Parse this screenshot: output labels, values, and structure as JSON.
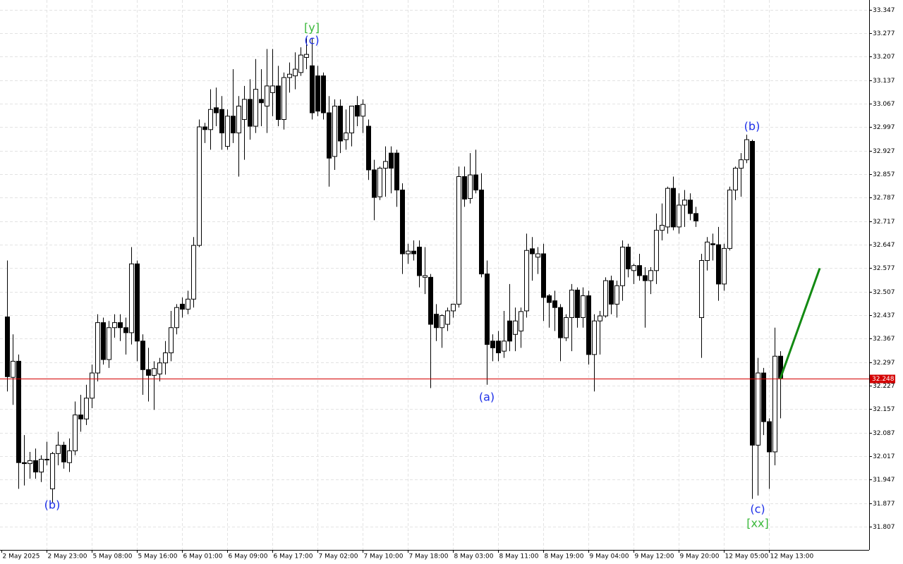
{
  "chart_data": {
    "type": "candlestick",
    "categories": [
      "2 May 2025",
      null,
      null,
      null,
      null,
      null,
      null,
      null,
      "2 May 23:00",
      null,
      null,
      null,
      null,
      null,
      null,
      null,
      "5 May 08:00",
      null,
      null,
      null,
      null,
      null,
      null,
      null,
      "5 May 16:00",
      null,
      null,
      null,
      null,
      null,
      null,
      null,
      "6 May 01:00",
      null,
      null,
      null,
      null,
      null,
      null,
      null,
      "6 May 09:00",
      null,
      null,
      null,
      null,
      null,
      null,
      null,
      "6 May 17:00",
      null,
      null,
      null,
      null,
      null,
      null,
      null,
      "7 May 02:00",
      null,
      null,
      null,
      null,
      null,
      null,
      null,
      "7 May 10:00",
      null,
      null,
      null,
      null,
      null,
      null,
      null,
      "7 May 18:00",
      null,
      null,
      null,
      null,
      null,
      null,
      null,
      "8 May 03:00",
      null,
      null,
      null,
      null,
      null,
      null,
      null,
      "8 May 11:00",
      null,
      null,
      null,
      null,
      null,
      null,
      null,
      "8 May 19:00",
      null,
      null,
      null,
      null,
      null,
      null,
      null,
      "9 May 04:00",
      null,
      null,
      null,
      null,
      null,
      null,
      null,
      "9 May 12:00",
      null,
      null,
      null,
      null,
      null,
      null,
      null,
      "9 May 20:00",
      null,
      null,
      null,
      null,
      null,
      null,
      null,
      "12 May 05:00",
      null,
      null,
      null,
      null,
      null,
      null,
      null,
      "12 May 13:00",
      null
    ],
    "open": [
      32.432,
      32.252,
      32.3,
      31.998,
      31.995,
      32.004,
      31.97,
      32.006,
      31.92,
      32.025,
      32.05,
      31.998,
      32.033,
      32.14,
      32.128,
      32.19,
      32.265,
      32.415,
      32.305,
      32.4,
      32.415,
      32.4,
      32.385,
      32.59,
      32.36,
      32.275,
      32.258,
      32.262,
      32.295,
      32.325,
      32.4,
      32.47,
      32.455,
      32.485,
      32.645,
      32.998,
      32.99,
      33.055,
      33.05,
      32.94,
      33.03,
      32.98,
      33.02,
      33.08,
      33.0,
      33.08,
      33.06,
      33.1,
      33.12,
      33.02,
      33.145,
      33.15,
      33.16,
      33.205,
      33.18,
      33.15,
      33.15,
      33.04,
      32.91,
      33.06,
      32.96,
      32.98,
      33.062,
      33.03,
      33.0,
      32.87,
      32.79,
      32.875,
      32.92,
      32.92,
      32.81,
      32.62,
      32.628,
      32.64,
      32.55,
      32.55,
      32.44,
      32.4,
      32.41,
      32.45,
      32.47,
      32.85,
      32.785,
      32.855,
      32.81,
      32.56,
      32.36,
      32.36,
      32.33,
      32.42,
      32.38,
      32.39,
      32.45,
      32.635,
      32.61,
      32.62,
      32.495,
      32.48,
      32.46,
      32.37,
      32.43,
      32.512,
      32.43,
      32.495,
      32.32,
      32.42,
      32.435,
      32.54,
      32.47,
      32.525,
      32.64,
      32.57,
      32.585,
      32.555,
      32.54,
      32.57,
      32.69,
      32.7,
      32.815,
      32.7,
      32.765,
      32.78,
      32.74,
      32.43,
      32.6,
      32.65,
      32.647,
      32.53,
      32.636,
      32.81,
      32.875,
      32.9,
      32.955,
      32.05,
      32.265,
      32.12,
      32.03,
      32.315
    ],
    "high": [
      32.6,
      32.38,
      32.32,
      32.08,
      32.03,
      32.04,
      32.02,
      32.06,
      32.03,
      32.09,
      32.06,
      32.07,
      32.18,
      32.2,
      32.23,
      32.29,
      32.44,
      32.43,
      32.42,
      32.44,
      32.44,
      32.43,
      32.64,
      32.6,
      32.38,
      32.34,
      32.3,
      32.31,
      32.36,
      32.45,
      32.47,
      32.49,
      32.51,
      32.67,
      33.02,
      33.01,
      33.11,
      33.115,
      33.09,
      33.05,
      33.17,
      33.09,
      33.12,
      33.14,
      33.2,
      33.17,
      33.23,
      33.23,
      33.18,
      33.16,
      33.19,
      33.22,
      33.235,
      33.262,
      33.262,
      33.18,
      33.16,
      33.09,
      33.08,
      33.08,
      33.05,
      33.06,
      33.09,
      33.08,
      33.02,
      32.9,
      32.88,
      32.94,
      32.94,
      32.93,
      32.83,
      32.65,
      32.66,
      32.66,
      32.64,
      32.56,
      32.47,
      32.44,
      32.46,
      32.47,
      32.88,
      32.88,
      32.92,
      32.93,
      32.86,
      32.6,
      32.38,
      32.39,
      32.45,
      32.53,
      32.46,
      32.46,
      32.68,
      32.67,
      32.64,
      32.65,
      32.5,
      32.51,
      32.47,
      32.44,
      32.53,
      32.52,
      32.52,
      32.51,
      32.44,
      32.45,
      32.55,
      32.555,
      32.54,
      32.66,
      32.65,
      32.59,
      32.62,
      32.58,
      32.58,
      32.74,
      32.77,
      32.82,
      32.85,
      32.8,
      32.81,
      32.8,
      32.76,
      32.62,
      32.67,
      32.68,
      32.7,
      32.65,
      32.82,
      32.88,
      32.92,
      32.975,
      32.96,
      32.31,
      32.28,
      32.13,
      32.4,
      32.33
    ],
    "low": [
      32.21,
      32.17,
      31.92,
      31.93,
      31.95,
      31.95,
      31.94,
      31.99,
      31.88,
      31.99,
      31.98,
      31.97,
      32.02,
      32.09,
      32.11,
      32.16,
      32.24,
      32.29,
      32.28,
      32.37,
      32.36,
      32.32,
      32.35,
      32.3,
      32.2,
      32.18,
      32.155,
      32.24,
      32.26,
      32.3,
      32.38,
      32.43,
      32.44,
      32.46,
      32.64,
      32.95,
      32.93,
      33.0,
      32.93,
      32.93,
      32.95,
      32.85,
      32.9,
      32.96,
      32.98,
      33.0,
      32.98,
      33.03,
      33.0,
      32.99,
      33.1,
      33.11,
      33.15,
      33.17,
      33.02,
      33.03,
      33.02,
      32.82,
      32.87,
      32.92,
      32.93,
      32.94,
      33.0,
      32.98,
      32.84,
      32.72,
      32.78,
      32.79,
      32.8,
      32.76,
      32.56,
      32.59,
      32.6,
      32.52,
      32.5,
      32.22,
      32.36,
      32.34,
      32.39,
      32.43,
      32.46,
      32.76,
      32.77,
      32.8,
      32.55,
      32.23,
      32.3,
      32.3,
      32.31,
      32.33,
      32.33,
      32.34,
      32.43,
      32.54,
      32.56,
      32.42,
      32.4,
      32.39,
      32.3,
      32.36,
      32.33,
      32.4,
      32.4,
      32.29,
      32.21,
      32.32,
      32.43,
      32.44,
      32.43,
      32.48,
      32.55,
      32.53,
      32.54,
      32.4,
      32.5,
      32.53,
      32.66,
      32.68,
      32.69,
      32.68,
      32.7,
      32.72,
      32.7,
      32.31,
      32.57,
      32.6,
      32.48,
      32.51,
      32.63,
      32.78,
      32.79,
      32.89,
      31.89,
      31.9,
      32.08,
      31.92,
      31.99,
      32.13
    ],
    "close": [
      32.254,
      32.3,
      31.998,
      31.995,
      32.004,
      31.97,
      32.008,
      32.008,
      32.025,
      32.05,
      32.0,
      32.033,
      32.14,
      32.128,
      32.19,
      32.265,
      32.415,
      32.305,
      32.4,
      32.415,
      32.4,
      32.385,
      32.59,
      32.36,
      32.275,
      32.258,
      32.278,
      32.295,
      32.325,
      32.4,
      32.46,
      32.455,
      32.485,
      32.645,
      32.998,
      32.99,
      33.05,
      33.04,
      32.98,
      33.03,
      32.98,
      33.06,
      33.08,
      33.0,
      33.11,
      33.07,
      33.12,
      33.12,
      33.02,
      33.145,
      33.155,
      33.17,
      33.212,
      33.214,
      33.04,
      33.045,
      33.04,
      32.905,
      33.06,
      32.956,
      32.98,
      33.06,
      33.03,
      33.065,
      32.87,
      32.788,
      32.875,
      32.895,
      32.875,
      32.81,
      32.62,
      32.628,
      32.62,
      32.555,
      32.555,
      32.41,
      32.4,
      32.436,
      32.45,
      32.47,
      32.85,
      32.783,
      32.855,
      32.81,
      32.56,
      32.35,
      32.34,
      32.325,
      32.36,
      32.36,
      32.42,
      32.448,
      32.63,
      32.62,
      32.62,
      32.49,
      32.475,
      32.46,
      32.37,
      32.43,
      32.512,
      32.43,
      32.495,
      32.32,
      32.42,
      32.435,
      32.54,
      32.47,
      32.525,
      32.64,
      32.575,
      32.585,
      32.555,
      32.54,
      32.57,
      32.69,
      32.705,
      32.815,
      32.7,
      32.765,
      32.78,
      32.74,
      32.718,
      32.6,
      32.655,
      32.647,
      32.53,
      32.636,
      32.81,
      32.875,
      32.9,
      32.96,
      32.05,
      32.265,
      32.12,
      32.03,
      32.315,
      32.25
    ],
    "bull_color": "#ffffff",
    "bear_color": "#000000",
    "ylim": [
      31.738,
      33.376
    ],
    "yticks": [
      33.347,
      33.277,
      33.207,
      33.137,
      33.067,
      32.997,
      32.927,
      32.857,
      32.787,
      32.717,
      32.647,
      32.577,
      32.507,
      32.437,
      32.367,
      32.297,
      32.227,
      32.157,
      32.087,
      32.017,
      31.947,
      31.877,
      31.807
    ],
    "grid": true,
    "current_price": {
      "value": 32.248,
      "color": "#d40000"
    },
    "forecast": {
      "values": [
        32.248,
        32.577
      ],
      "color": "#138a13"
    },
    "annotations": [
      {
        "text": "[y]",
        "color": "#3ab83a"
      },
      {
        "text": "(c)",
        "color": "#1c2ee8"
      },
      {
        "text": "(b)",
        "color": "#1c2ee8"
      },
      {
        "text": "(a)",
        "color": "#1c2ee8"
      },
      {
        "text": "(b)",
        "color": "#1c2ee8"
      },
      {
        "text": "(c)",
        "color": "#1c2ee8"
      },
      {
        "text": "[xx]",
        "color": "#3ab83a"
      }
    ]
  }
}
